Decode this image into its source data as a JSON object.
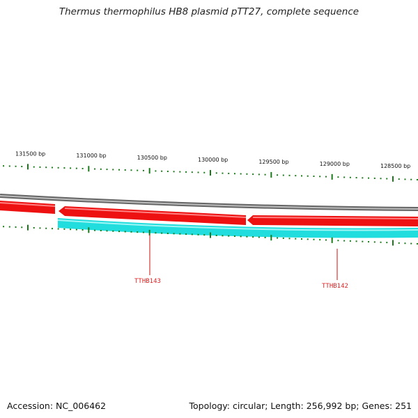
{
  "title": "Thermus thermophilus HB8 plasmid pTT27, complete sequence",
  "footer": {
    "accession": "Accession: NC_006462",
    "summary": "Topology: circular; Length: 256,992 bp; Genes: 251"
  },
  "colors": {
    "backbone": "#8c8c8c",
    "forward_gene": "#ee1111",
    "reverse_gene": "#22dddd",
    "tick": "#1a7a1a",
    "gene_label": "#cc1111"
  },
  "scale_ticks": [
    {
      "bp": 131500,
      "label": "131500 bp"
    },
    {
      "bp": 131000,
      "label": "131000 bp"
    },
    {
      "bp": 130500,
      "label": "130500 bp"
    },
    {
      "bp": 130000,
      "label": "130000 bp"
    },
    {
      "bp": 129500,
      "label": "129500 bp"
    },
    {
      "bp": 129000,
      "label": "129000 bp"
    },
    {
      "bp": 128500,
      "label": "128500 bp"
    }
  ],
  "genes": [
    {
      "name": "TTHB143",
      "strand": "reverse"
    },
    {
      "name": "TTHB142",
      "strand": "reverse"
    }
  ]
}
